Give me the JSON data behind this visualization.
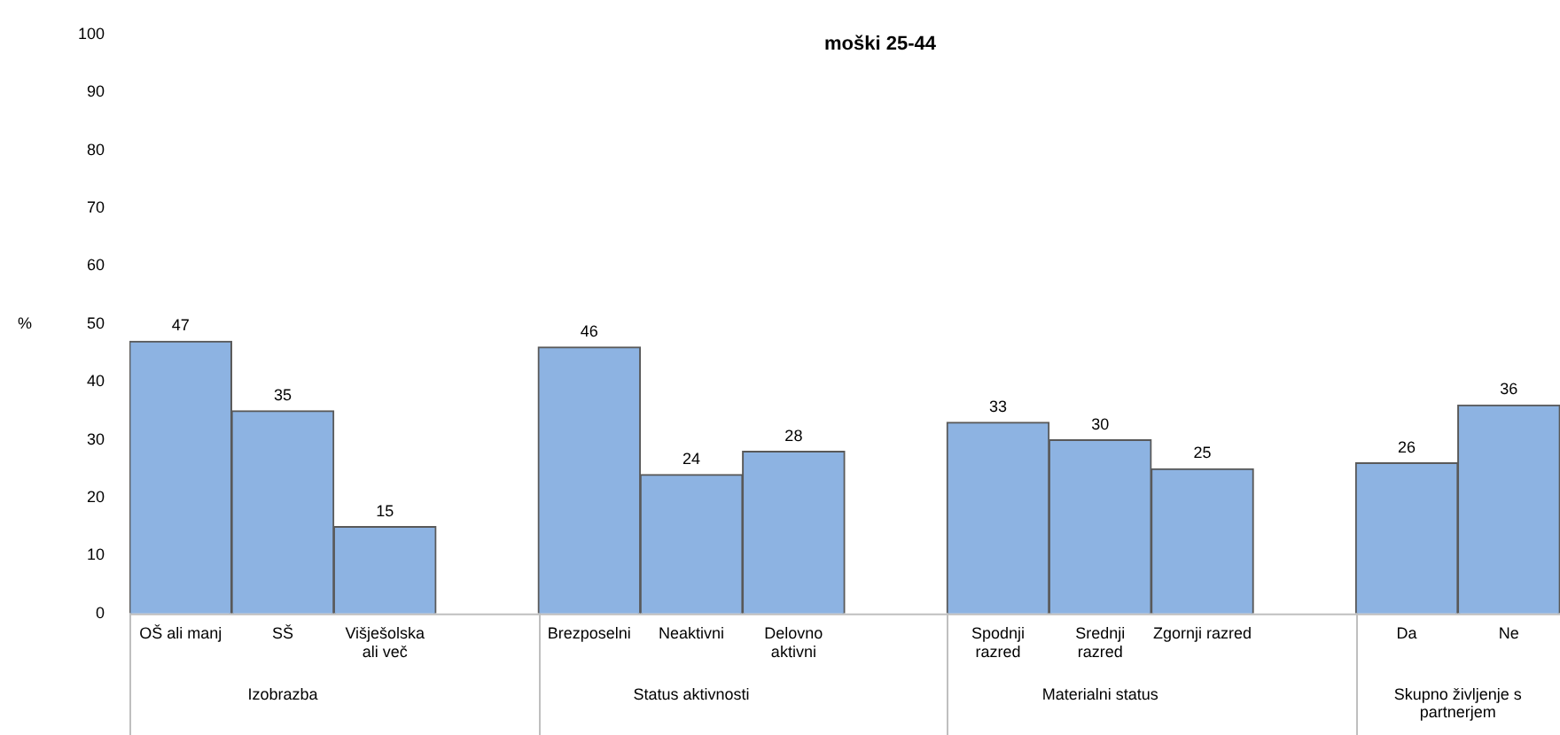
{
  "chart_data": {
    "type": "bar",
    "title": "moški 25-44",
    "ylabel": "%",
    "categories": [
      "OŠ ali manj",
      "SŠ",
      "Višješolska ali več",
      null,
      "Brezposelni",
      "Neaktivni",
      "Delovno aktivni",
      null,
      "Spodnji razred",
      "Srednji razred",
      "Zgornji razred",
      null,
      "Da",
      "Ne"
    ],
    "values": [
      47,
      35,
      15,
      null,
      46,
      24,
      28,
      null,
      33,
      30,
      25,
      null,
      26,
      36
    ],
    "color": "#8db3e2",
    "ylim": [
      0,
      100
    ],
    "yticks": [
      0,
      10,
      20,
      30,
      40,
      50,
      60,
      70,
      80,
      90,
      100
    ],
    "grid": false,
    "legend": false,
    "data_labels": true,
    "annotations": [
      "Izobrazba",
      "Status aktivnosti",
      "Materialni status",
      "Skupno življenje s partnerjem"
    ]
  }
}
